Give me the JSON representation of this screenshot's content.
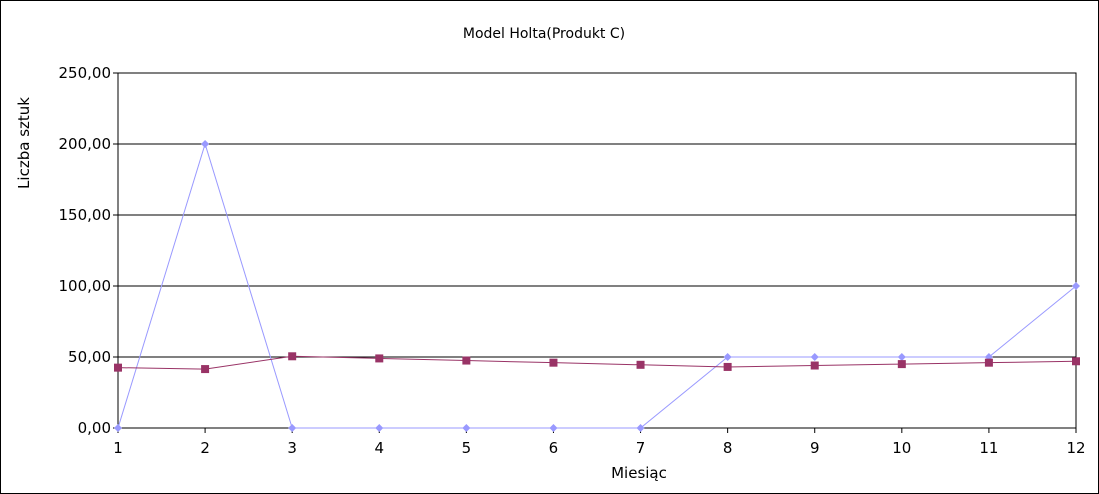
{
  "chart_data": {
    "type": "line",
    "title": "Model Holta(Produkt C)",
    "xlabel": "Miesiąc",
    "ylabel": "Liczba sztuk",
    "categories": [
      "1",
      "2",
      "3",
      "4",
      "5",
      "6",
      "7",
      "8",
      "9",
      "10",
      "11",
      "12"
    ],
    "ylim": [
      0,
      250
    ],
    "yticks": [
      0,
      50,
      100,
      150,
      200,
      250
    ],
    "ytick_labels": [
      "0,00",
      "50,00",
      "100,00",
      "150,00",
      "200,00",
      "250,00"
    ],
    "grid": true,
    "legend": "none",
    "series": [
      {
        "values": [
          0,
          200,
          0,
          0,
          0,
          0,
          0,
          50,
          50,
          50,
          50,
          100
        ],
        "color": "#9999ff",
        "marker": "diamond"
      },
      {
        "values": [
          42.5,
          41.5,
          50.5,
          49,
          47.5,
          46,
          44.5,
          43,
          44,
          45,
          46,
          47
        ],
        "color": "#993366",
        "marker": "square"
      }
    ]
  }
}
